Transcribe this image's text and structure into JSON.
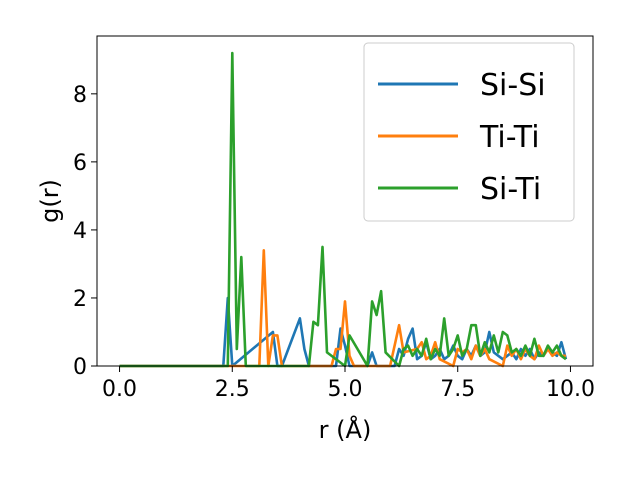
{
  "chart_data": {
    "type": "line",
    "title": "",
    "xlabel": "r (Å)",
    "ylabel": "g(r)",
    "xlim": [
      -0.5,
      10.5
    ],
    "ylim": [
      0,
      9.7
    ],
    "x_ticks": [
      "0.0",
      "2.5",
      "5.0",
      "7.5",
      "10.0"
    ],
    "y_ticks": [
      "0",
      "2",
      "4",
      "6",
      "8"
    ],
    "legend_position": "top-right",
    "grid": false,
    "series": [
      {
        "name": "Si-Si",
        "color": "#1f77b4",
        "x": [
          0.0,
          2.3,
          2.4,
          2.5,
          3.4,
          3.5,
          3.6,
          4.0,
          4.1,
          4.2,
          4.8,
          4.9,
          5.0,
          5.1,
          5.5,
          5.6,
          5.7,
          6.1,
          6.2,
          6.3,
          6.4,
          6.5,
          6.6,
          6.7,
          6.8,
          6.9,
          7.0,
          7.1,
          7.2,
          7.3,
          7.4,
          7.5,
          7.6,
          7.7,
          7.8,
          7.9,
          8.0,
          8.1,
          8.2,
          8.3,
          8.4,
          8.5,
          8.6,
          8.7,
          8.8,
          8.9,
          9.0,
          9.1,
          9.2,
          9.3,
          9.4,
          9.5,
          9.6,
          9.7,
          9.8,
          9.9
        ],
        "y": [
          0,
          0,
          2.0,
          0,
          1.0,
          0,
          0,
          1.4,
          0.5,
          0,
          0,
          1.1,
          0.6,
          0,
          0,
          0.4,
          0,
          0,
          0.5,
          0.3,
          0.8,
          1.1,
          0.2,
          0.3,
          0.7,
          0.2,
          0.3,
          0.5,
          0.2,
          0.3,
          0.6,
          0.3,
          0.2,
          0.5,
          0.3,
          0.6,
          0.3,
          0.4,
          1.0,
          0.4,
          0.3,
          0.2,
          0.3,
          0.4,
          0.2,
          0.5,
          0.3,
          0.5,
          0.2,
          0.4,
          0.3,
          0.5,
          0.4,
          0.3,
          0.7,
          0.2
        ]
      },
      {
        "name": "Ti-Ti",
        "color": "#ff7f0e",
        "x": [
          0.0,
          3.1,
          3.2,
          3.3,
          3.4,
          3.5,
          3.6,
          3.7,
          4.7,
          4.8,
          4.9,
          5.0,
          5.1,
          5.2,
          6.0,
          6.1,
          6.2,
          6.3,
          6.6,
          6.7,
          6.8,
          6.9,
          7.0,
          7.1,
          7.4,
          7.5,
          7.6,
          7.7,
          7.8,
          7.9,
          8.0,
          8.1,
          8.2,
          8.5,
          8.6,
          8.7,
          8.8,
          8.9,
          9.0,
          9.1,
          9.2,
          9.3,
          9.4,
          9.5,
          9.6,
          9.7,
          9.8,
          9.9
        ],
        "y": [
          0,
          0,
          3.4,
          0,
          0.9,
          0.9,
          0,
          0,
          0,
          0.5,
          0.5,
          1.9,
          0.3,
          0,
          0,
          0.6,
          1.2,
          0.4,
          0.5,
          0.7,
          0.2,
          0.3,
          0.7,
          0.2,
          0,
          0.5,
          0.4,
          0.5,
          0.2,
          0.6,
          0.3,
          0.5,
          0.2,
          0,
          0.6,
          0.3,
          0.5,
          0.2,
          0.5,
          0.3,
          0.2,
          0.6,
          0.3,
          0.5,
          0.3,
          0.4,
          0.3,
          0.3
        ]
      },
      {
        "name": "Si-Ti",
        "color": "#2ca02c",
        "x": [
          0.0,
          2.4,
          2.5,
          2.6,
          2.7,
          2.8,
          4.2,
          4.3,
          4.4,
          4.5,
          4.6,
          5.0,
          5.1,
          5.5,
          5.6,
          5.7,
          5.8,
          5.9,
          6.2,
          6.3,
          6.4,
          6.5,
          6.6,
          6.7,
          6.8,
          6.9,
          7.0,
          7.1,
          7.2,
          7.3,
          7.4,
          7.5,
          7.6,
          7.7,
          7.8,
          7.9,
          8.0,
          8.1,
          8.2,
          8.3,
          8.4,
          8.5,
          8.6,
          8.7,
          8.8,
          8.9,
          9.0,
          9.1,
          9.2,
          9.3,
          9.4,
          9.5,
          9.6,
          9.7,
          9.8,
          9.9
        ],
        "y": [
          0,
          0,
          9.2,
          0.5,
          3.2,
          0,
          0,
          1.3,
          1.2,
          3.5,
          0.4,
          0,
          0.9,
          0,
          1.9,
          1.5,
          2.2,
          0.4,
          0,
          0.5,
          0.6,
          0.3,
          0.5,
          0.3,
          0.8,
          0.2,
          0.5,
          0.3,
          1.4,
          0.3,
          0.5,
          0.9,
          0.3,
          0.5,
          1.2,
          1.2,
          0.3,
          0.7,
          0.4,
          0.9,
          0.4,
          1.0,
          0.9,
          0.4,
          0.5,
          0.3,
          0.6,
          0.3,
          0.8,
          0.3,
          0.3,
          0.6,
          0.4,
          0.6,
          0.3,
          0.2
        ]
      }
    ]
  }
}
